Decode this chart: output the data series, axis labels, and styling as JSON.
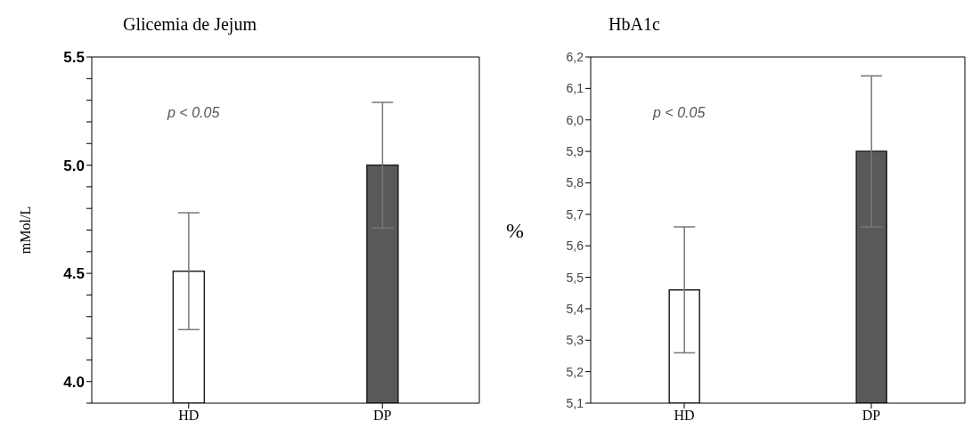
{
  "chart_data": [
    {
      "type": "bar",
      "title": "Glicemia de Jejum",
      "ylabel": "mMol/L",
      "categories": [
        "HD",
        "DP"
      ],
      "values": [
        4.51,
        5.0
      ],
      "errors": [
        0.27,
        0.29
      ],
      "colors": [
        "#ffffff",
        "#595959"
      ],
      "ylim": [
        3.9,
        5.5
      ],
      "yticks": [
        {
          "value": 3.9,
          "label": null
        },
        {
          "value": 4.0,
          "label": "4.0"
        },
        {
          "value": 4.1,
          "label": null
        },
        {
          "value": 4.2,
          "label": null
        },
        {
          "value": 4.3,
          "label": null
        },
        {
          "value": 4.4,
          "label": null
        },
        {
          "value": 4.5,
          "label": "4.5"
        },
        {
          "value": 4.6,
          "label": null
        },
        {
          "value": 4.7,
          "label": null
        },
        {
          "value": 4.8,
          "label": null
        },
        {
          "value": 4.9,
          "label": null
        },
        {
          "value": 5.0,
          "label": "5.0"
        },
        {
          "value": 5.1,
          "label": null
        },
        {
          "value": 5.2,
          "label": null
        },
        {
          "value": 5.3,
          "label": null
        },
        {
          "value": 5.4,
          "label": null
        },
        {
          "value": 5.5,
          "label": "5.5"
        }
      ],
      "annotations": [
        "p < 0.05"
      ]
    },
    {
      "type": "bar",
      "title": "HbA1c",
      "ylabel": "%",
      "categories": [
        "HD",
        "DP"
      ],
      "values": [
        5.46,
        5.9
      ],
      "errors": [
        0.2,
        0.24
      ],
      "colors": [
        "#ffffff",
        "#595959"
      ],
      "ylim": [
        5.1,
        6.2
      ],
      "yticks": [
        {
          "value": 5.1,
          "label": "5,1"
        },
        {
          "value": 5.2,
          "label": "5,2"
        },
        {
          "value": 5.3,
          "label": "5,3"
        },
        {
          "value": 5.4,
          "label": "5,4"
        },
        {
          "value": 5.5,
          "label": "5,5"
        },
        {
          "value": 5.6,
          "label": "5,6"
        },
        {
          "value": 5.7,
          "label": "5,7"
        },
        {
          "value": 5.8,
          "label": "5,8"
        },
        {
          "value": 5.9,
          "label": "5,9"
        },
        {
          "value": 6.0,
          "label": "6,0"
        },
        {
          "value": 6.1,
          "label": "6,1"
        },
        {
          "value": 6.2,
          "label": "6,2"
        }
      ],
      "annotations": [
        "p < 0.05"
      ]
    }
  ]
}
